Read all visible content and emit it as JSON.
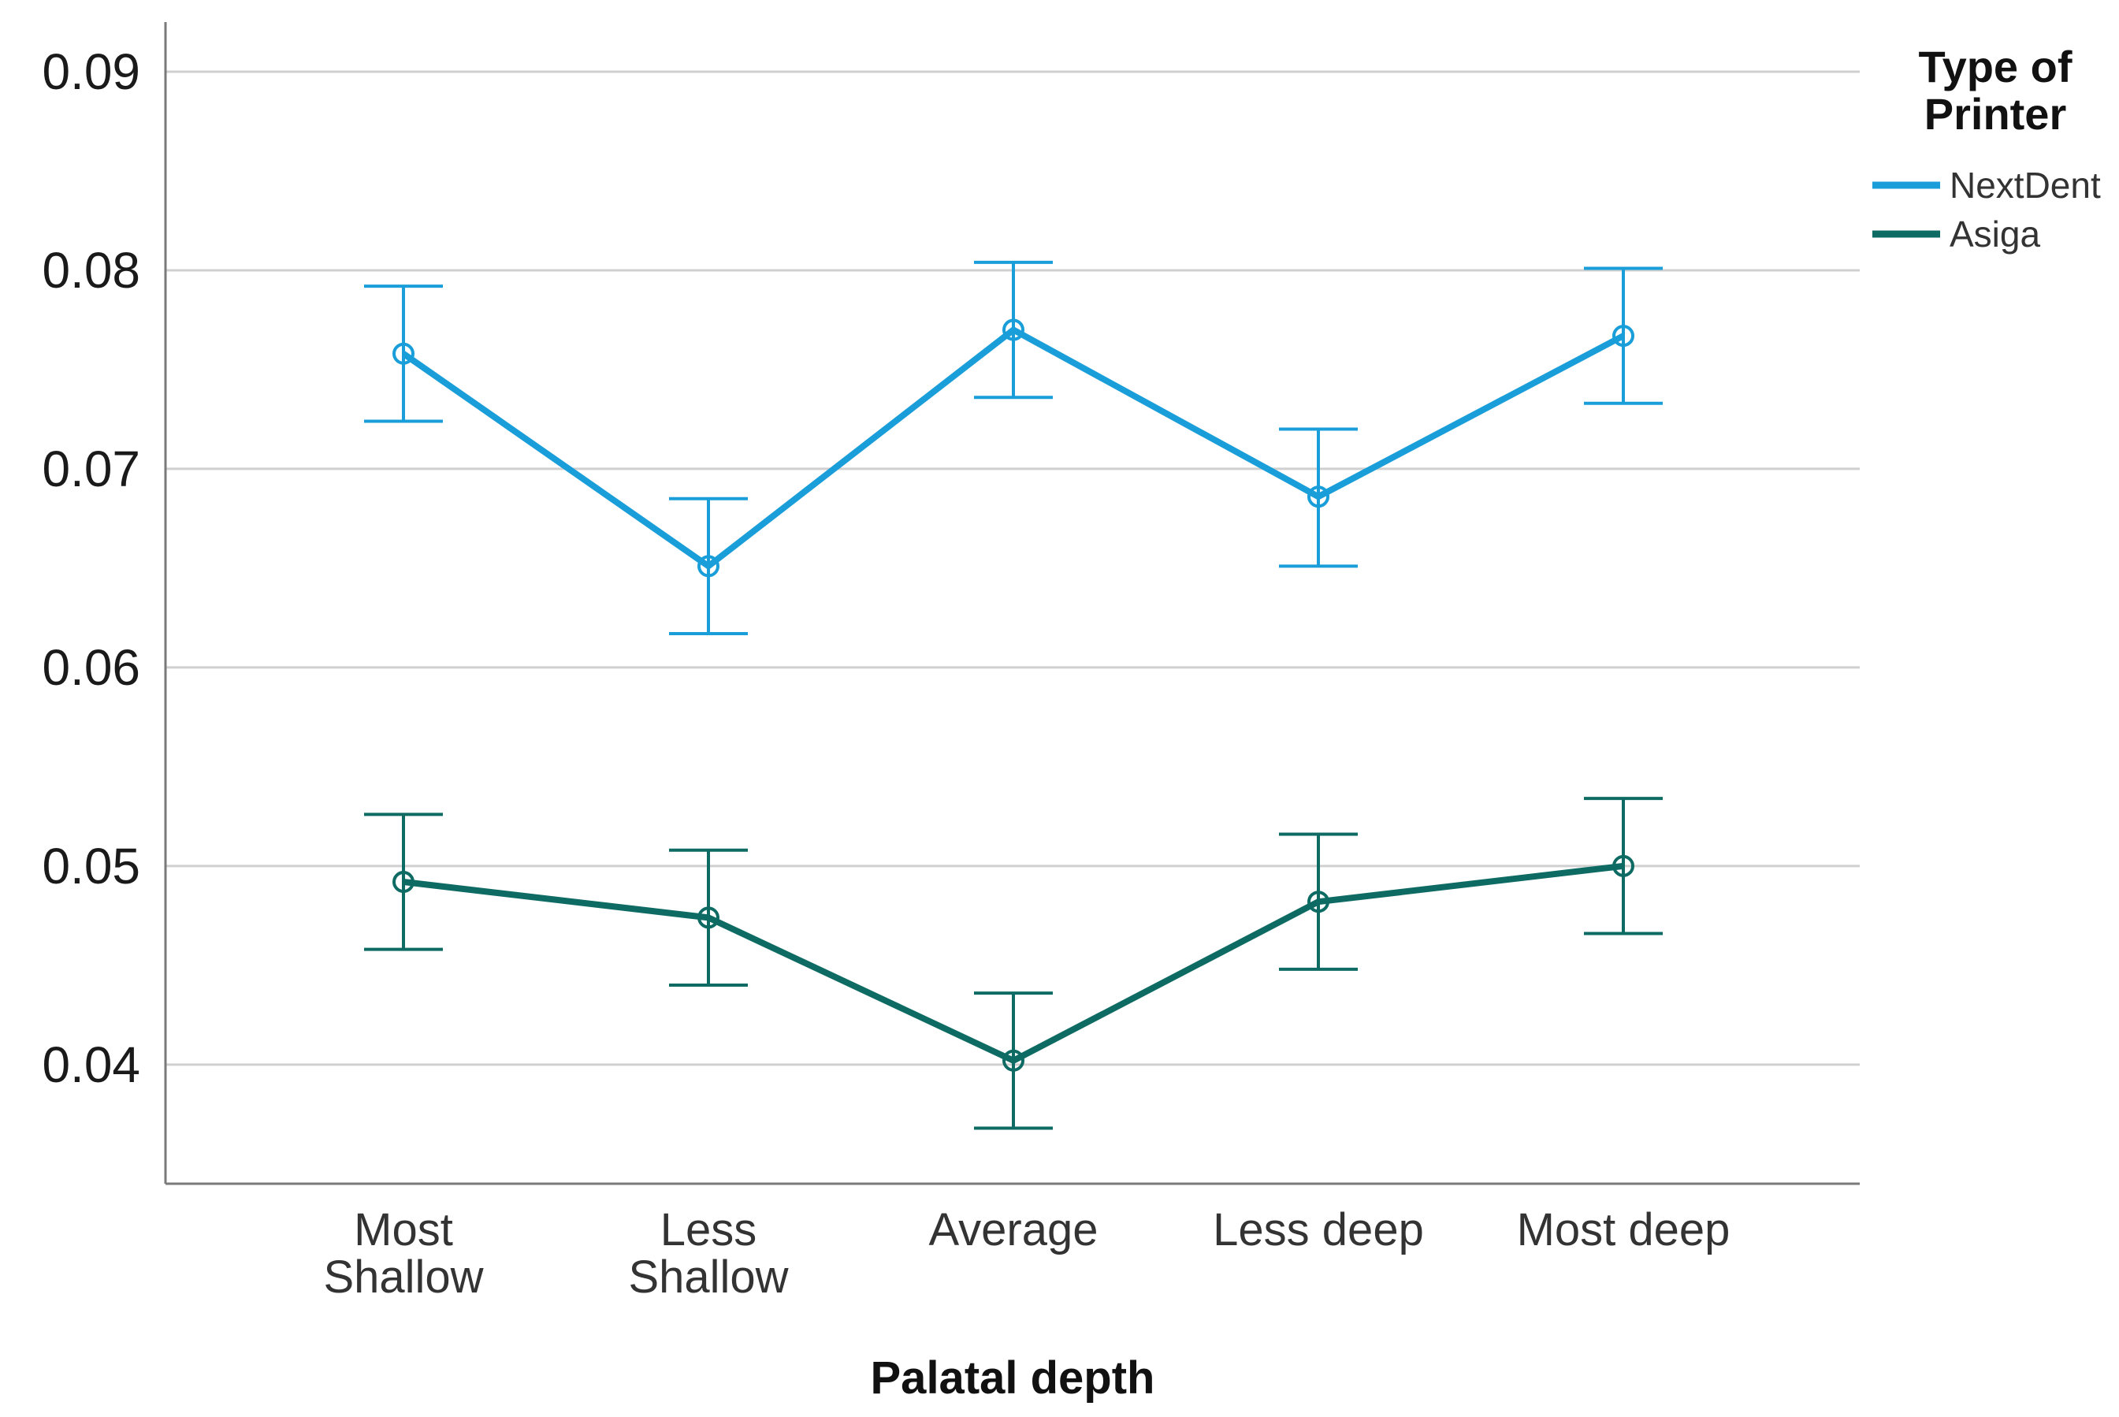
{
  "chart_data": {
    "type": "line",
    "title": "",
    "xlabel": "Palatal depth",
    "ylabel": "",
    "categories": [
      "Most Shallow",
      "Less Shallow",
      "Average",
      "Less deep",
      "Most deep"
    ],
    "category_lines": [
      [
        "Most",
        "Shallow"
      ],
      [
        "Less",
        "Shallow"
      ],
      [
        "Average"
      ],
      [
        "Less deep"
      ],
      [
        "Most deep"
      ]
    ],
    "ylim": [
      0.034,
      0.0925
    ],
    "yticks": [
      "0.04",
      "0.05",
      "0.06",
      "0.07",
      "0.08",
      "0.09"
    ],
    "grid": true,
    "legend": {
      "title_lines": [
        "Type of",
        "Printer"
      ],
      "position": "top-right"
    },
    "series": [
      {
        "name": "NextDent",
        "color": "#1a9ed9",
        "values": [
          0.0758,
          0.0651,
          0.077,
          0.0686,
          0.0767
        ],
        "error_low": [
          0.0724,
          0.0617,
          0.0736,
          0.0651,
          0.0733
        ],
        "error_high": [
          0.0792,
          0.0685,
          0.0804,
          0.072,
          0.0801
        ]
      },
      {
        "name": "Asiga",
        "color": "#0e6b63",
        "values": [
          0.0492,
          0.0474,
          0.0402,
          0.0482,
          0.05
        ],
        "error_low": [
          0.0458,
          0.044,
          0.0368,
          0.0448,
          0.0466
        ],
        "error_high": [
          0.0526,
          0.0508,
          0.0436,
          0.0516,
          0.0534
        ]
      }
    ]
  }
}
